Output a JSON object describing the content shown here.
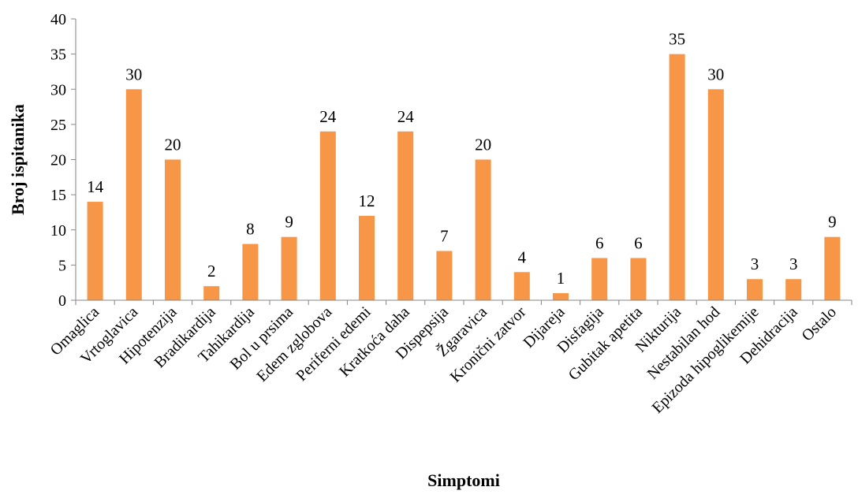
{
  "chart_data": {
    "type": "bar",
    "title": "",
    "xlabel": "Simptomi",
    "ylabel": "Broj ispitanika",
    "ylim": [
      0,
      40
    ],
    "yticks": [
      0,
      5,
      10,
      15,
      20,
      25,
      30,
      35,
      40
    ],
    "grid": false,
    "legend": "none",
    "bar_color": "#F79646",
    "categories": [
      "Omaglica",
      "Vrtoglavica",
      "Hipotenzija",
      "Bradikardija",
      "Tahikardija",
      "Bol u prsima",
      "Edem zglobova",
      "Periferni edemi",
      "Kratkoća daha",
      "Dispepsija",
      "Žgaravica",
      "Kronični zatvor",
      "Dijareja",
      "Disfagija",
      "Gubitak apetita",
      "Nikturija",
      "Nestabilan hod",
      "Epizoda hipoglikemije",
      "Dehidracija",
      "Ostalo"
    ],
    "values": [
      14,
      30,
      20,
      2,
      8,
      9,
      24,
      12,
      24,
      7,
      20,
      4,
      1,
      6,
      6,
      35,
      30,
      3,
      3,
      9
    ]
  }
}
